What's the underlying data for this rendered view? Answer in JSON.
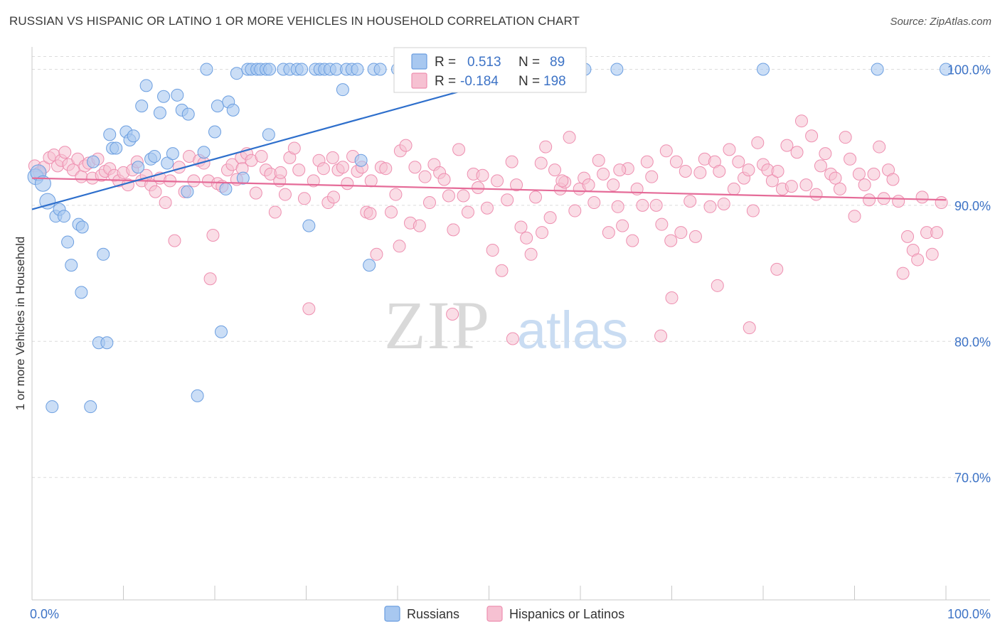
{
  "header": {
    "title": "RUSSIAN VS HISPANIC OR LATINO 1 OR MORE VEHICLES IN HOUSEHOLD CORRELATION CHART",
    "source": "Source: ZipAtlas.com"
  },
  "watermark": {
    "zip": "ZIP",
    "atlas": "atlas"
  },
  "colors": {
    "blue_fill": "#a8c8f0",
    "blue_stroke": "#6b9ee0",
    "blue_line": "#2e6fcc",
    "pink_fill": "#f6c1d2",
    "pink_stroke": "#ee8fb0",
    "pink_line": "#e56b98",
    "tick_text": "#3d73c6"
  },
  "legend": {
    "r_label": "R =",
    "n_label": "N =",
    "rows": [
      {
        "r": "0.513",
        "n": "89"
      },
      {
        "r": "-0.184",
        "n": "198"
      }
    ]
  },
  "chart_data": {
    "type": "scatter",
    "title": "RUSSIAN VS HISPANIC OR LATINO 1 OR MORE VEHICLES IN HOUSEHOLD CORRELATION CHART",
    "xlabel": "",
    "ylabel": "1 or more Vehicles in Household",
    "xlim": [
      0,
      100
    ],
    "ylim": [
      61.0,
      101.8
    ],
    "x_tick_labels": [
      "0.0%",
      "100.0%"
    ],
    "y_ticks": [
      70,
      80,
      90,
      100
    ],
    "y_tick_labels": [
      "70.0%",
      "80.0%",
      "90.0%",
      "100.0%"
    ],
    "grid": "horizontal dashed",
    "legend_position": "top-center",
    "series": [
      {
        "name": "Russians",
        "r": 0.513,
        "n": 89,
        "trend": {
          "x": [
            0,
            55.6
          ],
          "y": [
            89.7,
            100.0
          ]
        },
        "points": [
          [
            0.4,
            92.1
          ],
          [
            0.7,
            92.4
          ],
          [
            1.2,
            91.6
          ],
          [
            1.7,
            90.3
          ],
          [
            2.2,
            75.2
          ],
          [
            2.6,
            89.2
          ],
          [
            3.0,
            89.7
          ],
          [
            3.5,
            89.2
          ],
          [
            3.9,
            87.3
          ],
          [
            4.3,
            85.6
          ],
          [
            5.1,
            88.6
          ],
          [
            5.5,
            88.4
          ],
          [
            5.4,
            83.6
          ],
          [
            6.7,
            93.2
          ],
          [
            7.3,
            79.9
          ],
          [
            7.8,
            86.4
          ],
          [
            8.2,
            79.9
          ],
          [
            8.5,
            95.2
          ],
          [
            8.8,
            94.2
          ],
          [
            9.2,
            94.2
          ],
          [
            6.4,
            75.2
          ],
          [
            10.3,
            95.4
          ],
          [
            10.7,
            94.8
          ],
          [
            11.1,
            95.1
          ],
          [
            11.6,
            92.8
          ],
          [
            12.0,
            97.3
          ],
          [
            12.5,
            98.8
          ],
          [
            13.0,
            93.4
          ],
          [
            13.4,
            93.6
          ],
          [
            14.0,
            96.8
          ],
          [
            14.4,
            98.0
          ],
          [
            14.8,
            93.1
          ],
          [
            15.4,
            93.8
          ],
          [
            15.9,
            98.1
          ],
          [
            16.4,
            97.0
          ],
          [
            17.1,
            96.7
          ],
          [
            17.0,
            91.0
          ],
          [
            18.1,
            76.0
          ],
          [
            18.8,
            93.9
          ],
          [
            19.1,
            100.0
          ],
          [
            20.0,
            95.4
          ],
          [
            20.3,
            97.3
          ],
          [
            20.7,
            80.7
          ],
          [
            21.2,
            91.2
          ],
          [
            21.5,
            97.6
          ],
          [
            22.0,
            97.0
          ],
          [
            22.4,
            99.7
          ],
          [
            23.1,
            92.0
          ],
          [
            23.6,
            100.0
          ],
          [
            24.0,
            100.0
          ],
          [
            24.6,
            100.0
          ],
          [
            25.0,
            100.0
          ],
          [
            25.6,
            100.0
          ],
          [
            26.0,
            100.0
          ],
          [
            25.9,
            95.2
          ],
          [
            27.5,
            100.0
          ],
          [
            28.2,
            100.0
          ],
          [
            29.0,
            100.0
          ],
          [
            29.5,
            100.0
          ],
          [
            30.3,
            88.5
          ],
          [
            31.0,
            100.0
          ],
          [
            31.5,
            100.0
          ],
          [
            32.0,
            100.0
          ],
          [
            32.6,
            100.0
          ],
          [
            33.3,
            100.0
          ],
          [
            34.0,
            98.5
          ],
          [
            34.4,
            100.0
          ],
          [
            35.0,
            100.0
          ],
          [
            35.6,
            100.0
          ],
          [
            36.0,
            93.3
          ],
          [
            36.9,
            85.6
          ],
          [
            37.4,
            100.0
          ],
          [
            38.1,
            100.0
          ],
          [
            40.0,
            100.0
          ],
          [
            40.5,
            99.1
          ],
          [
            41.0,
            100.0
          ],
          [
            42.0,
            100.0
          ],
          [
            43.5,
            100.0
          ],
          [
            45.0,
            100.0
          ],
          [
            48.0,
            100.0
          ],
          [
            49.0,
            100.0
          ],
          [
            50.5,
            100.0
          ],
          [
            52.0,
            100.0
          ],
          [
            57.0,
            100.0
          ],
          [
            60.5,
            100.0
          ],
          [
            64.0,
            100.0
          ],
          [
            80.0,
            100.0
          ],
          [
            92.5,
            100.0
          ],
          [
            100.0,
            100.0
          ]
        ]
      },
      {
        "name": "Hispanics or Latinos",
        "r": -0.184,
        "n": 198,
        "trend": {
          "x": [
            0,
            100
          ],
          "y": [
            92.0,
            90.4
          ]
        },
        "points": [
          [
            0.3,
            92.9
          ],
          [
            0.8,
            92.4
          ],
          [
            1.3,
            92.8
          ],
          [
            1.9,
            93.5
          ],
          [
            2.4,
            93.7
          ],
          [
            2.8,
            92.9
          ],
          [
            3.2,
            93.3
          ],
          [
            3.6,
            93.9
          ],
          [
            4.0,
            93.0
          ],
          [
            4.5,
            92.6
          ],
          [
            5.0,
            93.4
          ],
          [
            5.4,
            92.1
          ],
          [
            5.8,
            92.9
          ],
          [
            6.2,
            93.1
          ],
          [
            6.6,
            92.0
          ],
          [
            7.2,
            93.4
          ],
          [
            7.6,
            92.2
          ],
          [
            8.0,
            92.5
          ],
          [
            8.5,
            92.7
          ],
          [
            9.0,
            92.2
          ],
          [
            9.5,
            91.8
          ],
          [
            10.0,
            92.4
          ],
          [
            10.5,
            91.5
          ],
          [
            11.0,
            92.6
          ],
          [
            11.5,
            93.2
          ],
          [
            12.0,
            91.8
          ],
          [
            12.5,
            92.2
          ],
          [
            13.0,
            91.5
          ],
          [
            13.5,
            91.0
          ],
          [
            14.0,
            92.0
          ],
          [
            14.6,
            90.2
          ],
          [
            15.1,
            91.8
          ],
          [
            15.6,
            87.4
          ],
          [
            16.1,
            92.8
          ],
          [
            16.7,
            91.0
          ],
          [
            17.2,
            93.6
          ],
          [
            17.7,
            91.8
          ],
          [
            18.3,
            93.3
          ],
          [
            18.8,
            93.1
          ],
          [
            19.3,
            91.8
          ],
          [
            19.8,
            87.8
          ],
          [
            20.3,
            91.6
          ],
          [
            20.8,
            91.4
          ],
          [
            21.4,
            92.6
          ],
          [
            21.9,
            93.0
          ],
          [
            22.4,
            91.9
          ],
          [
            22.9,
            93.5
          ],
          [
            23.5,
            93.8
          ],
          [
            24.0,
            93.3
          ],
          [
            24.5,
            90.9
          ],
          [
            25.1,
            93.6
          ],
          [
            25.6,
            92.6
          ],
          [
            26.1,
            92.3
          ],
          [
            26.6,
            89.5
          ],
          [
            27.1,
            91.8
          ],
          [
            27.7,
            90.8
          ],
          [
            28.2,
            93.5
          ],
          [
            28.7,
            94.2
          ],
          [
            29.2,
            92.6
          ],
          [
            29.8,
            90.5
          ],
          [
            30.3,
            82.4
          ],
          [
            30.8,
            91.8
          ],
          [
            31.4,
            93.3
          ],
          [
            31.9,
            92.7
          ],
          [
            32.4,
            90.2
          ],
          [
            32.9,
            93.5
          ],
          [
            33.5,
            92.6
          ],
          [
            34.0,
            92.8
          ],
          [
            34.5,
            91.6
          ],
          [
            35.1,
            93.6
          ],
          [
            35.6,
            92.5
          ],
          [
            36.1,
            92.8
          ],
          [
            36.6,
            89.5
          ],
          [
            37.1,
            91.8
          ],
          [
            37.7,
            86.4
          ],
          [
            38.2,
            92.8
          ],
          [
            38.7,
            92.7
          ],
          [
            39.3,
            89.5
          ],
          [
            39.8,
            90.8
          ],
          [
            40.3,
            94.0
          ],
          [
            40.9,
            94.4
          ],
          [
            41.4,
            88.7
          ],
          [
            41.9,
            92.8
          ],
          [
            42.4,
            88.5
          ],
          [
            43.0,
            92.1
          ],
          [
            43.5,
            90.2
          ],
          [
            44.0,
            93.0
          ],
          [
            44.6,
            92.4
          ],
          [
            45.1,
            91.9
          ],
          [
            45.6,
            90.7
          ],
          [
            46.1,
            88.2
          ],
          [
            46.7,
            94.1
          ],
          [
            47.2,
            90.7
          ],
          [
            47.7,
            89.5
          ],
          [
            48.3,
            92.3
          ],
          [
            48.8,
            91.3
          ],
          [
            49.3,
            92.2
          ],
          [
            49.8,
            89.8
          ],
          [
            50.4,
            86.7
          ],
          [
            50.9,
            91.8
          ],
          [
            51.4,
            85.2
          ],
          [
            52.0,
            90.4
          ],
          [
            52.5,
            93.2
          ],
          [
            53.0,
            91.5
          ],
          [
            53.5,
            88.4
          ],
          [
            54.1,
            87.6
          ],
          [
            54.6,
            86.4
          ],
          [
            55.1,
            90.6
          ],
          [
            55.7,
            93.1
          ],
          [
            56.2,
            94.3
          ],
          [
            56.7,
            89.1
          ],
          [
            57.2,
            92.6
          ],
          [
            57.8,
            91.2
          ],
          [
            58.3,
            91.7
          ],
          [
            58.8,
            95.0
          ],
          [
            59.4,
            89.6
          ],
          [
            59.9,
            91.2
          ],
          [
            60.4,
            92.0
          ],
          [
            60.9,
            91.5
          ],
          [
            61.5,
            90.2
          ],
          [
            62.0,
            93.3
          ],
          [
            62.5,
            92.3
          ],
          [
            63.1,
            88.0
          ],
          [
            63.6,
            91.5
          ],
          [
            64.1,
            89.9
          ],
          [
            64.6,
            88.5
          ],
          [
            65.2,
            92.7
          ],
          [
            65.7,
            87.4
          ],
          [
            66.2,
            91.2
          ],
          [
            66.8,
            90.0
          ],
          [
            67.3,
            93.2
          ],
          [
            67.8,
            92.1
          ],
          [
            68.3,
            90.0
          ],
          [
            68.9,
            88.6
          ],
          [
            69.4,
            94.0
          ],
          [
            69.9,
            87.4
          ],
          [
            70.5,
            93.2
          ],
          [
            71.0,
            88.0
          ],
          [
            71.5,
            92.5
          ],
          [
            72.0,
            90.3
          ],
          [
            72.6,
            87.7
          ],
          [
            73.1,
            92.4
          ],
          [
            73.6,
            93.4
          ],
          [
            74.2,
            89.9
          ],
          [
            74.7,
            93.2
          ],
          [
            75.2,
            92.5
          ],
          [
            75.7,
            90.1
          ],
          [
            76.3,
            94.1
          ],
          [
            76.8,
            91.2
          ],
          [
            77.3,
            93.2
          ],
          [
            77.9,
            92.0
          ],
          [
            78.4,
            92.6
          ],
          [
            78.9,
            89.6
          ],
          [
            79.4,
            94.6
          ],
          [
            80.0,
            93.0
          ],
          [
            80.5,
            92.6
          ],
          [
            81.0,
            91.8
          ],
          [
            81.6,
            92.5
          ],
          [
            82.1,
            91.2
          ],
          [
            82.6,
            94.4
          ],
          [
            83.1,
            91.4
          ],
          [
            83.7,
            93.9
          ],
          [
            84.2,
            96.2
          ],
          [
            84.7,
            91.5
          ],
          [
            85.3,
            95.1
          ],
          [
            85.8,
            90.8
          ],
          [
            86.3,
            92.9
          ],
          [
            86.8,
            93.8
          ],
          [
            87.4,
            92.3
          ],
          [
            87.9,
            92.0
          ],
          [
            88.4,
            91.2
          ],
          [
            89.0,
            95.0
          ],
          [
            89.5,
            93.4
          ],
          [
            90.0,
            89.2
          ],
          [
            90.5,
            92.3
          ],
          [
            91.1,
            91.5
          ],
          [
            91.6,
            90.4
          ],
          [
            92.1,
            92.3
          ],
          [
            92.7,
            94.3
          ],
          [
            93.2,
            90.5
          ],
          [
            93.7,
            92.6
          ],
          [
            94.2,
            91.9
          ],
          [
            94.8,
            90.3
          ],
          [
            95.3,
            85.0
          ],
          [
            95.8,
            87.7
          ],
          [
            96.4,
            86.7
          ],
          [
            96.9,
            86.0
          ],
          [
            97.4,
            90.6
          ],
          [
            97.9,
            88.0
          ],
          [
            98.5,
            86.4
          ],
          [
            99.0,
            88.0
          ],
          [
            99.5,
            90.2
          ],
          [
            37.0,
            89.4
          ],
          [
            46.0,
            82.0
          ],
          [
            52.6,
            80.2
          ],
          [
            70.0,
            83.2
          ],
          [
            75.0,
            84.1
          ],
          [
            78.5,
            81.0
          ],
          [
            81.5,
            85.3
          ],
          [
            68.8,
            80.4
          ],
          [
            55.8,
            88.0
          ],
          [
            64.3,
            92.6
          ],
          [
            40.2,
            87.0
          ],
          [
            33.0,
            90.6
          ],
          [
            19.5,
            84.6
          ],
          [
            23.0,
            92.7
          ],
          [
            27.2,
            92.4
          ],
          [
            58.0,
            91.8
          ]
        ]
      }
    ]
  },
  "bottom_legend": [
    {
      "label": "Russians"
    },
    {
      "label": "Hispanics or Latinos"
    }
  ]
}
